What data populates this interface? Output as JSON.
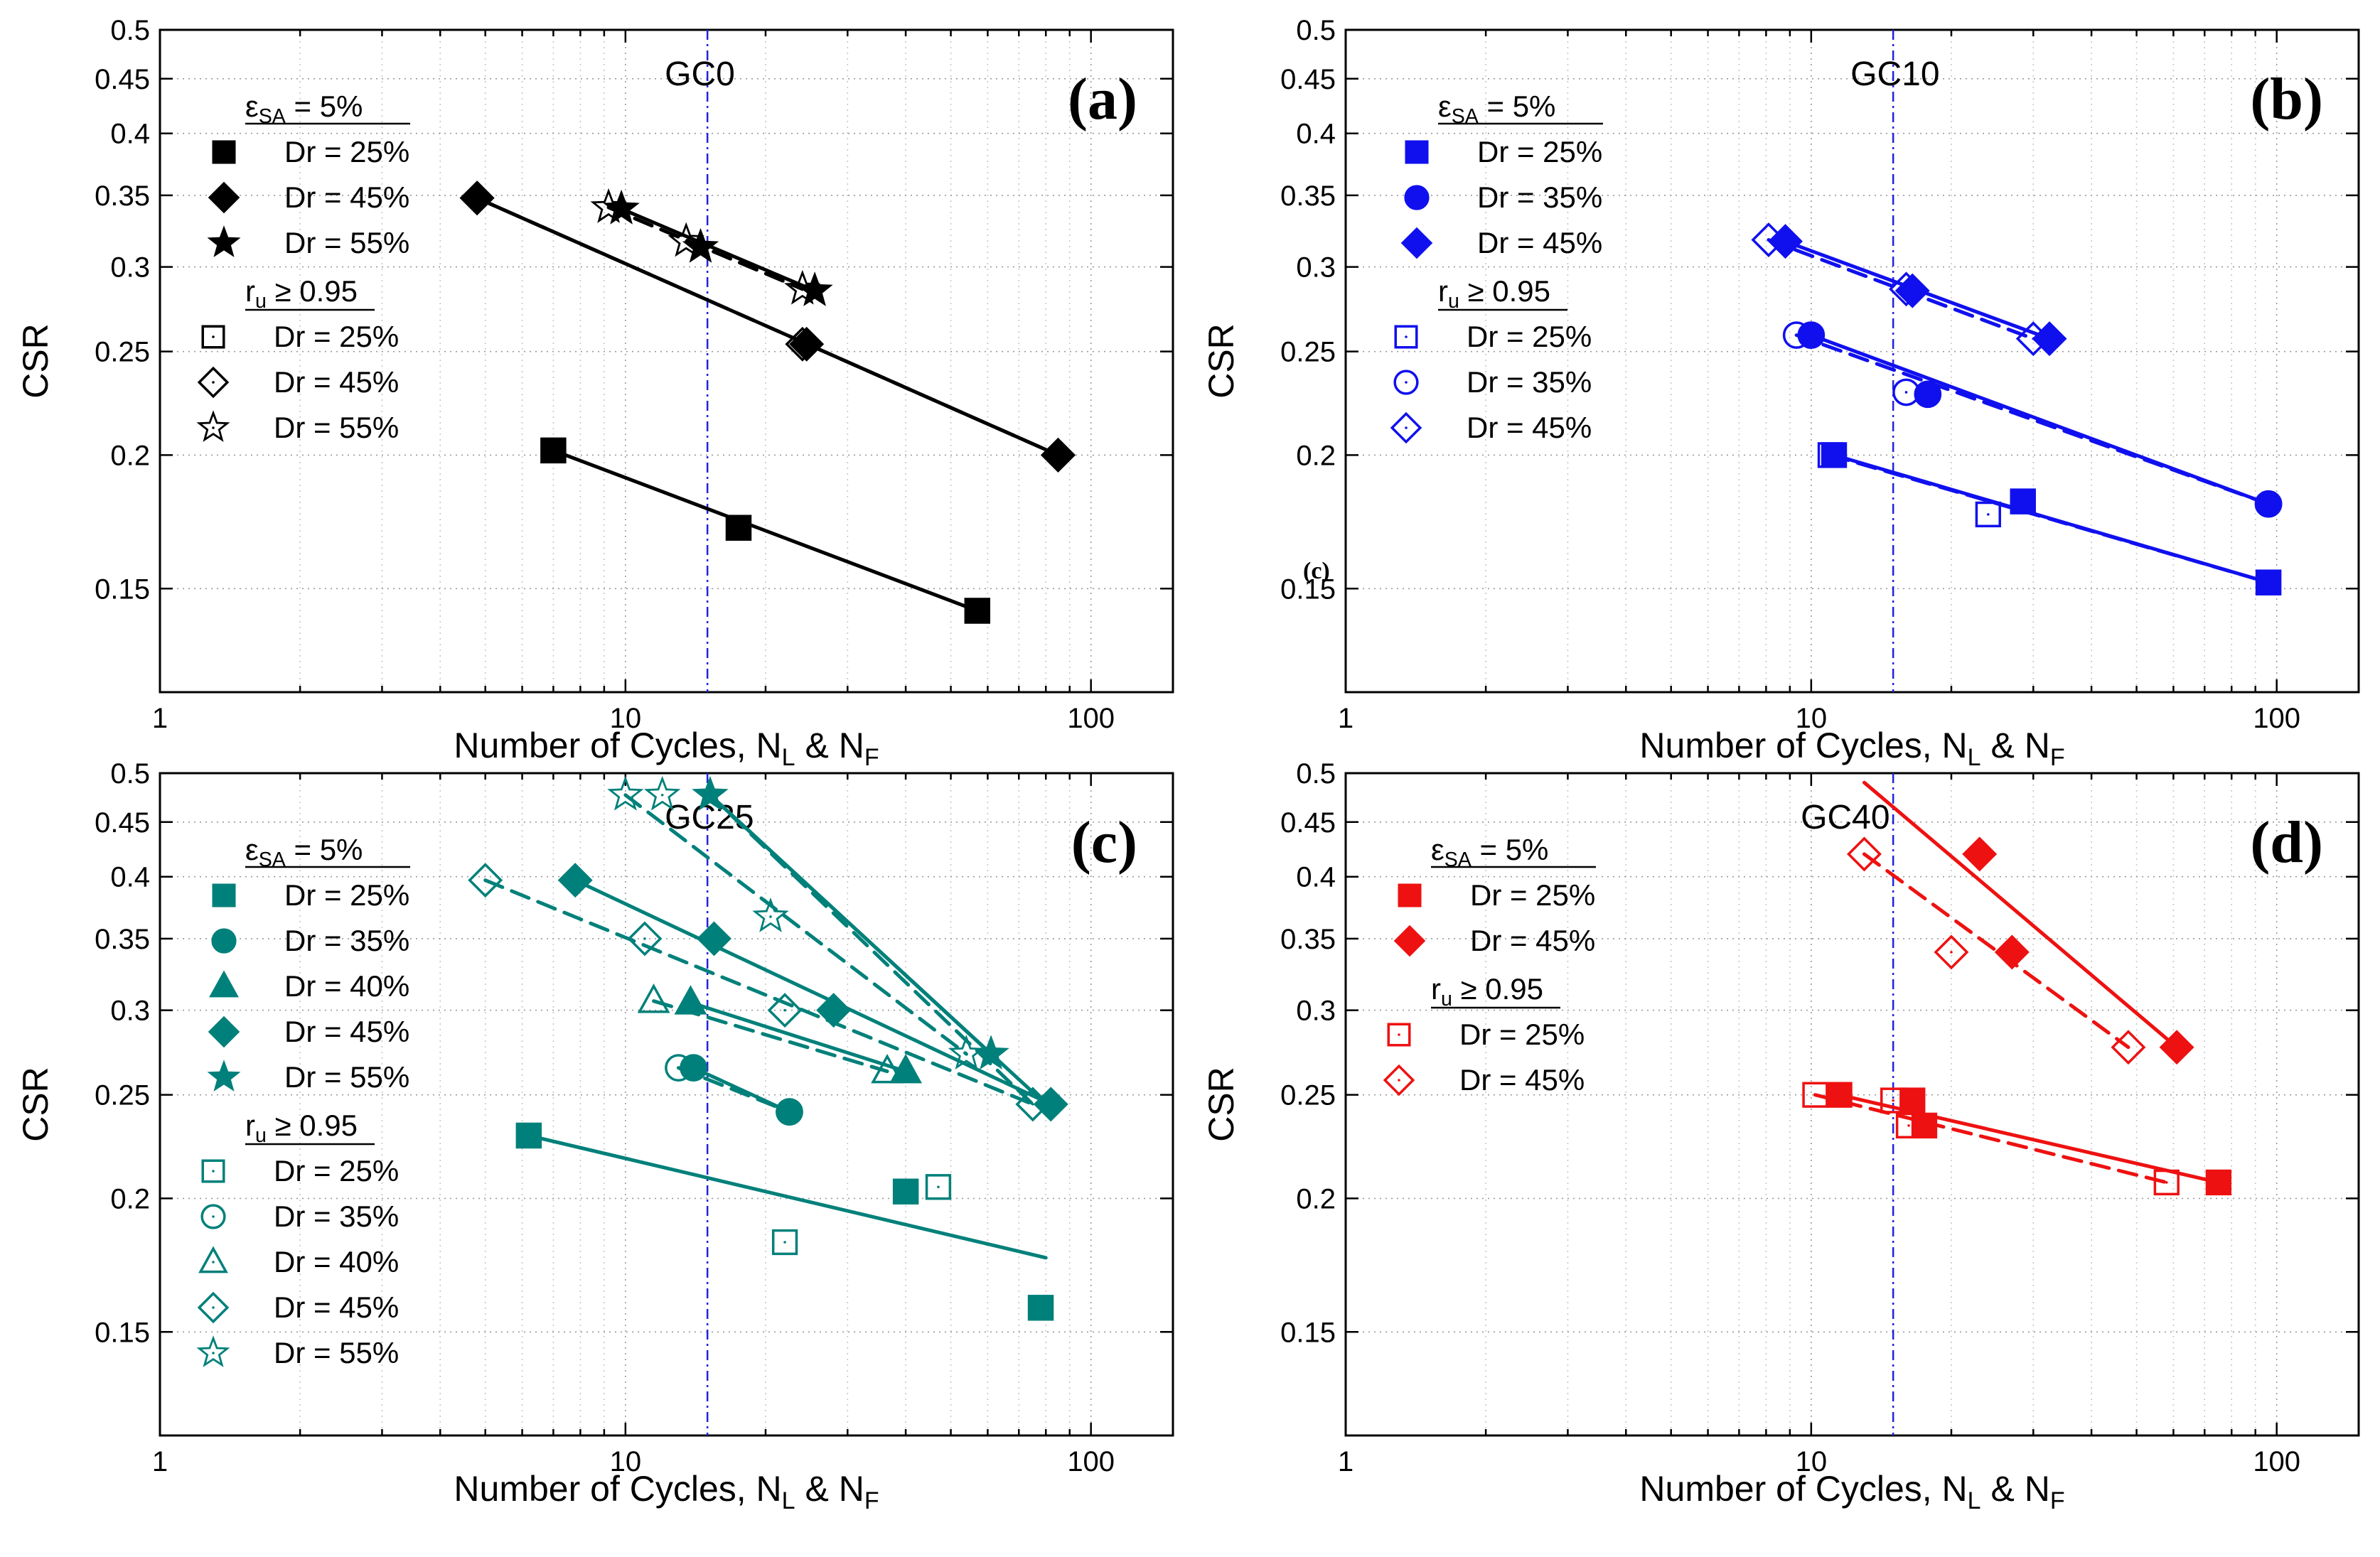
{
  "chart_data": [
    {
      "type": "scatter",
      "panel": "(a)",
      "title": "GC0",
      "xlabel": "Number of Cycles, N_L & N_F",
      "ylabel": "CSR",
      "xscale": "log",
      "yscale": "log",
      "xlim": [
        1,
        150
      ],
      "ylim": [
        0.12,
        0.5
      ],
      "xticks": [
        1,
        10,
        100
      ],
      "yticks": [
        0.15,
        0.2,
        0.25,
        0.3,
        0.35,
        0.4,
        0.45,
        0.5
      ],
      "color": "#000000",
      "reference_line_x": 15,
      "legend_header_1": "ε_SA = 5%",
      "legend_header_2": "r_u ≥ 0.95",
      "note": "",
      "series": [
        {
          "name": "Dr = 25%",
          "criterion": "ε_SA = 5%",
          "marker": "square",
          "filled": true,
          "points": [
            [
              7,
              0.202
            ],
            [
              17.5,
              0.171
            ],
            [
              57,
              0.143
            ]
          ]
        },
        {
          "name": "Dr = 45%",
          "criterion": "ε_SA = 5%",
          "marker": "diamond",
          "filled": true,
          "points": [
            [
              4.8,
              0.348
            ],
            [
              24.5,
              0.254
            ],
            [
              85,
              0.2
            ]
          ]
        },
        {
          "name": "Dr = 55%",
          "criterion": "ε_SA = 5%",
          "marker": "star",
          "filled": true,
          "points": [
            [
              9.8,
              0.34
            ],
            [
              14.5,
              0.313
            ],
            [
              25.5,
              0.285
            ]
          ]
        },
        {
          "name": "Dr = 25%",
          "criterion": "r_u ≥ 0.95",
          "marker": "square",
          "filled": false,
          "points": [
            [
              7,
              0.202
            ],
            [
              17.5,
              0.171
            ],
            [
              57,
              0.143
            ]
          ]
        },
        {
          "name": "Dr = 45%",
          "criterion": "r_u ≥ 0.95",
          "marker": "diamond",
          "filled": false,
          "points": [
            [
              4.8,
              0.348
            ],
            [
              24,
              0.254
            ],
            [
              85,
              0.2
            ]
          ]
        },
        {
          "name": "Dr = 55%",
          "criterion": "r_u ≥ 0.95",
          "marker": "star",
          "filled": false,
          "points": [
            [
              9.2,
              0.341
            ],
            [
              13.5,
              0.317
            ],
            [
              24,
              0.286
            ]
          ]
        }
      ],
      "fits": [
        {
          "x": [
            7,
            57
          ],
          "y": [
            0.202,
            0.143
          ],
          "dashed": false
        },
        {
          "x": [
            4.8,
            85
          ],
          "y": [
            0.348,
            0.2
          ],
          "dashed": false
        },
        {
          "x": [
            4.8,
            85
          ],
          "y": [
            0.348,
            0.2
          ],
          "dashed": true
        },
        {
          "x": [
            9.8,
            25.5
          ],
          "y": [
            0.34,
            0.285
          ],
          "dashed": false
        },
        {
          "x": [
            9.2,
            24
          ],
          "y": [
            0.341,
            0.286
          ],
          "dashed": true
        }
      ]
    },
    {
      "type": "scatter",
      "panel": "(b)",
      "title": "GC10",
      "xlabel": "Number of Cycles, N_L & N_F",
      "ylabel": "CSR",
      "xscale": "log",
      "yscale": "log",
      "xlim": [
        1,
        150
      ],
      "ylim": [
        0.12,
        0.5
      ],
      "xticks": [
        1,
        10,
        100
      ],
      "yticks": [
        0.15,
        0.2,
        0.25,
        0.3,
        0.35,
        0.4,
        0.45,
        0.5
      ],
      "color": "#1010ee",
      "reference_line_x": 15,
      "legend_header_1": "ε_SA = 5%",
      "legend_header_2": "r_u ≥ 0.95",
      "note": "(c)",
      "series": [
        {
          "name": "Dr = 25%",
          "criterion": "ε_SA = 5%",
          "marker": "square",
          "filled": true,
          "points": [
            [
              11.2,
              0.2
            ],
            [
              28.5,
              0.181
            ],
            [
              96,
              0.152
            ]
          ]
        },
        {
          "name": "Dr = 35%",
          "criterion": "ε_SA = 5%",
          "marker": "circle",
          "filled": true,
          "points": [
            [
              10,
              0.259
            ],
            [
              17.8,
              0.228
            ],
            [
              96,
              0.18
            ]
          ]
        },
        {
          "name": "Dr = 45%",
          "criterion": "ε_SA = 5%",
          "marker": "diamond",
          "filled": true,
          "points": [
            [
              8.8,
              0.317
            ],
            [
              16.5,
              0.285
            ],
            [
              32.5,
              0.257
            ]
          ]
        },
        {
          "name": "Dr = 25%",
          "criterion": "r_u ≥ 0.95",
          "marker": "square",
          "filled": false,
          "points": [
            [
              11,
              0.2
            ],
            [
              24,
              0.176
            ],
            [
              28.5,
              0.181
            ],
            [
              96,
              0.152
            ]
          ]
        },
        {
          "name": "Dr = 35%",
          "criterion": "r_u ≥ 0.95",
          "marker": "circle",
          "filled": false,
          "points": [
            [
              9.3,
              0.259
            ],
            [
              16,
              0.229
            ],
            [
              96,
              0.18
            ]
          ]
        },
        {
          "name": "Dr = 45%",
          "criterion": "r_u ≥ 0.95",
          "marker": "diamond",
          "filled": false,
          "points": [
            [
              8.1,
              0.318
            ],
            [
              16,
              0.286
            ],
            [
              30,
              0.257
            ]
          ]
        }
      ],
      "fits": [
        {
          "x": [
            11.2,
            96
          ],
          "y": [
            0.2,
            0.152
          ],
          "dashed": false
        },
        {
          "x": [
            11,
            96
          ],
          "y": [
            0.2,
            0.152
          ],
          "dashed": true
        },
        {
          "x": [
            10,
            96
          ],
          "y": [
            0.259,
            0.18
          ],
          "dashed": false
        },
        {
          "x": [
            9.3,
            96
          ],
          "y": [
            0.259,
            0.18
          ],
          "dashed": true
        },
        {
          "x": [
            8.8,
            32.5
          ],
          "y": [
            0.317,
            0.257
          ],
          "dashed": false
        },
        {
          "x": [
            8.1,
            30
          ],
          "y": [
            0.318,
            0.257
          ],
          "dashed": true
        }
      ]
    },
    {
      "type": "scatter",
      "panel": "(c)",
      "title": "GC25",
      "xlabel": "Number of Cycles, N_L & N_F",
      "ylabel": "CSR",
      "xscale": "log",
      "yscale": "log",
      "xlim": [
        1,
        150
      ],
      "ylim": [
        0.12,
        0.5
      ],
      "xticks": [
        1,
        10,
        100
      ],
      "yticks": [
        0.15,
        0.2,
        0.25,
        0.3,
        0.35,
        0.4,
        0.45,
        0.5
      ],
      "color": "#00807a",
      "reference_line_x": 15,
      "legend_header_1": "ε_SA = 5%",
      "legend_header_2": "r_u ≥ 0.95",
      "note": "",
      "series": [
        {
          "name": "Dr = 25%",
          "criterion": "ε_SA = 5%",
          "marker": "square",
          "filled": true,
          "points": [
            [
              6.2,
              0.229
            ],
            [
              40,
              0.203
            ],
            [
              78,
              0.158
            ]
          ]
        },
        {
          "name": "Dr = 35%",
          "criterion": "ε_SA = 5%",
          "marker": "circle",
          "filled": true,
          "points": [
            [
              14,
              0.265
            ],
            [
              22.5,
              0.241
            ]
          ]
        },
        {
          "name": "Dr = 40%",
          "criterion": "ε_SA = 5%",
          "marker": "triangle",
          "filled": true,
          "points": [
            [
              13.8,
              0.305
            ],
            [
              40,
              0.263
            ]
          ]
        },
        {
          "name": "Dr = 45%",
          "criterion": "ε_SA = 5%",
          "marker": "diamond",
          "filled": true,
          "points": [
            [
              7.8,
              0.397
            ],
            [
              15.5,
              0.35
            ],
            [
              28,
              0.3
            ],
            [
              82,
              0.245
            ]
          ]
        },
        {
          "name": "Dr = 55%",
          "criterion": "ε_SA = 5%",
          "marker": "star",
          "filled": true,
          "points": [
            [
              15.2,
              0.477
            ],
            [
              61,
              0.273
            ]
          ]
        },
        {
          "name": "Dr = 25%",
          "criterion": "r_u ≥ 0.95",
          "marker": "square",
          "filled": false,
          "points": [
            [
              6.2,
              0.229
            ],
            [
              22,
              0.182
            ],
            [
              40,
              0.203
            ],
            [
              47,
              0.205
            ],
            [
              78,
              0.158
            ]
          ]
        },
        {
          "name": "Dr = 35%",
          "criterion": "r_u ≥ 0.95",
          "marker": "circle",
          "filled": false,
          "points": [
            [
              13,
              0.265
            ],
            [
              22.5,
              0.241
            ]
          ]
        },
        {
          "name": "Dr = 40%",
          "criterion": "r_u ≥ 0.95",
          "marker": "triangle",
          "filled": false,
          "points": [
            [
              11.5,
              0.306
            ],
            [
              36.5,
              0.263
            ]
          ]
        },
        {
          "name": "Dr = 45%",
          "criterion": "r_u ≥ 0.95",
          "marker": "diamond",
          "filled": false,
          "points": [
            [
              5,
              0.397
            ],
            [
              11,
              0.35
            ],
            [
              22,
              0.3
            ],
            [
              75,
              0.245
            ]
          ]
        },
        {
          "name": "Dr = 55%",
          "criterion": "r_u ≥ 0.95",
          "marker": "star",
          "filled": false,
          "points": [
            [
              10,
              0.477
            ],
            [
              12,
              0.477
            ],
            [
              20.5,
              0.367
            ],
            [
              54,
              0.273
            ]
          ]
        }
      ],
      "fits": [
        {
          "x": [
            6.2,
            80
          ],
          "y": [
            0.229,
            0.176
          ],
          "dashed": false
        },
        {
          "x": [
            14,
            22.5
          ],
          "y": [
            0.265,
            0.241
          ],
          "dashed": false
        },
        {
          "x": [
            13,
            22.5
          ],
          "y": [
            0.265,
            0.241
          ],
          "dashed": true
        },
        {
          "x": [
            13.8,
            40
          ],
          "y": [
            0.305,
            0.263
          ],
          "dashed": false
        },
        {
          "x": [
            11.5,
            36.5
          ],
          "y": [
            0.306,
            0.263
          ],
          "dashed": true
        },
        {
          "x": [
            7.8,
            82
          ],
          "y": [
            0.397,
            0.245
          ],
          "dashed": false
        },
        {
          "x": [
            5,
            75
          ],
          "y": [
            0.397,
            0.245
          ],
          "dashed": true
        },
        {
          "x": [
            15.2,
            80
          ],
          "y": [
            0.477,
            0.245
          ],
          "dashed": false
        },
        {
          "x": [
            15.2,
            61
          ],
          "y": [
            0.477,
            0.273
          ],
          "dashed": false
        },
        {
          "x": [
            10,
            54
          ],
          "y": [
            0.477,
            0.273
          ],
          "dashed": true
        },
        {
          "x": [
            15.2,
            75
          ],
          "y": [
            0.477,
            0.245
          ],
          "dashed": true
        }
      ]
    },
    {
      "type": "scatter",
      "panel": "(d)",
      "title": "GC40",
      "xlabel": "Number of Cycles, N_L & N_F",
      "ylabel": "CSR",
      "xscale": "log",
      "yscale": "log",
      "xlim": [
        1,
        150
      ],
      "ylim": [
        0.12,
        0.5
      ],
      "xticks": [
        1,
        10,
        100
      ],
      "yticks": [
        0.15,
        0.2,
        0.25,
        0.3,
        0.35,
        0.4,
        0.45,
        0.5
      ],
      "color": "#ee1111",
      "reference_line_x": 15,
      "legend_header_1": "ε_SA = 5%",
      "legend_header_2": "r_u ≥ 0.95",
      "note": "",
      "series": [
        {
          "name": "Dr = 25%",
          "criterion": "ε_SA = 5%",
          "marker": "square",
          "filled": true,
          "points": [
            [
              11.5,
              0.25
            ],
            [
              16.5,
              0.247
            ],
            [
              17.5,
              0.234
            ],
            [
              75,
              0.207
            ]
          ]
        },
        {
          "name": "Dr = 45%",
          "criterion": "ε_SA = 5%",
          "marker": "diamond",
          "filled": true,
          "points": [
            [
              23,
              0.42
            ],
            [
              27,
              0.34
            ],
            [
              61,
              0.277
            ]
          ]
        },
        {
          "name": "Dr = 25%",
          "criterion": "r_u ≥ 0.95",
          "marker": "square",
          "filled": false,
          "points": [
            [
              10.2,
              0.25
            ],
            [
              15,
              0.247
            ],
            [
              16.2,
              0.234
            ],
            [
              58,
              0.207
            ]
          ]
        },
        {
          "name": "Dr = 45%",
          "criterion": "r_u ≥ 0.95",
          "marker": "diamond",
          "filled": false,
          "points": [
            [
              13,
              0.42
            ],
            [
              20,
              0.34
            ],
            [
              48,
              0.277
            ]
          ]
        }
      ],
      "fits": [
        {
          "x": [
            11.5,
            75
          ],
          "y": [
            0.25,
            0.207
          ],
          "dashed": false
        },
        {
          "x": [
            10.2,
            58
          ],
          "y": [
            0.25,
            0.207
          ],
          "dashed": true
        },
        {
          "x": [
            13,
            61
          ],
          "y": [
            0.49,
            0.277
          ],
          "dashed": false
        },
        {
          "x": [
            13,
            48
          ],
          "y": [
            0.42,
            0.277
          ],
          "dashed": true
        }
      ]
    }
  ]
}
